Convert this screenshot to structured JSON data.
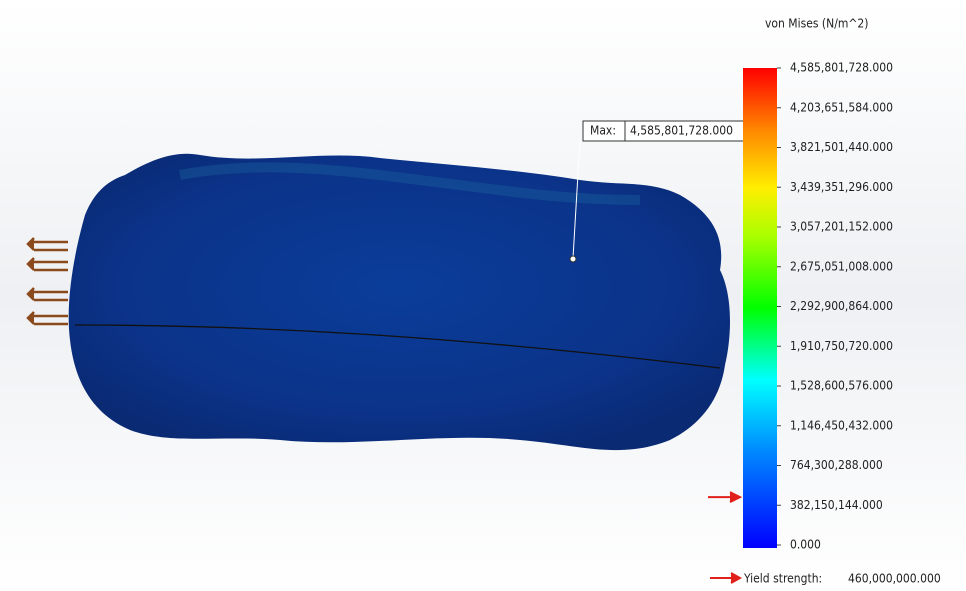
{
  "legend": {
    "title": "von Mises (N/m^2)",
    "range": [
      0,
      4585801728
    ],
    "ticks": [
      {
        "value": 4585801728,
        "label": "4,585,801,728.000"
      },
      {
        "value": 4203651584,
        "label": "4,203,651,584.000"
      },
      {
        "value": 3821501440,
        "label": "3,821,501,440.000"
      },
      {
        "value": 3439351296,
        "label": "3,439,351,296.000"
      },
      {
        "value": 3057201152,
        "label": "3,057,201,152.000"
      },
      {
        "value": 2675051008,
        "label": "2,675,051,008.000"
      },
      {
        "value": 2292900864,
        "label": "2,292,900,864.000"
      },
      {
        "value": 1910750720,
        "label": "1,910,750,720.000"
      },
      {
        "value": 1528600576,
        "label": "1,528,600,576.000"
      },
      {
        "value": 1146450432,
        "label": "1,146,450,432.000"
      },
      {
        "value": 764300288,
        "label": "764,300,288.000"
      },
      {
        "value": 382150144,
        "label": "382,150,144.000"
      },
      {
        "value": 0,
        "label": "0.000"
      }
    ],
    "yield_strength": {
      "text": "Yield strength:",
      "value": 460000000,
      "label": "460,000,000.000"
    }
  },
  "max_annotation": {
    "text": "Max:",
    "value": 4585801728,
    "label": "4,585,801,728.000"
  }
}
